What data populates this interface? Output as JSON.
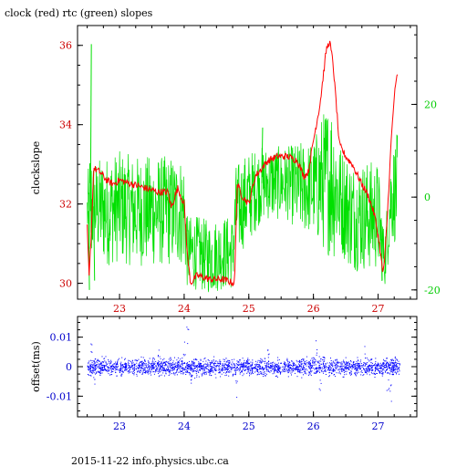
{
  "title": "clock (red) rtc (green) slopes",
  "footer": "2015-11-22 info.physics.ubc.ca",
  "colors": {
    "clock": "#ff0000",
    "rtc": "#00e000",
    "offset": "#0000ff",
    "red_axis": "#cc0000",
    "green_axis": "#00cc00",
    "blue_axis": "#0000cc"
  },
  "chart_data": [
    {
      "type": "line",
      "title": "clock (red) rtc (green) slopes",
      "xlim": [
        22.35,
        27.6
      ],
      "x_ticks": [
        "23",
        "24",
        "25",
        "26",
        "27"
      ],
      "ylabel": "clockslope",
      "ylim": [
        29.6,
        36.5
      ],
      "y_ticks": [
        "30",
        "32",
        "34",
        "36"
      ],
      "y2lim": [
        -22,
        37
      ],
      "y2_ticks": [
        "-20",
        "0",
        "20"
      ],
      "series": [
        {
          "name": "clock",
          "axis": "left",
          "color": "#ff0000",
          "x": [
            22.5,
            22.53,
            22.56,
            22.6,
            22.7,
            22.8,
            22.9,
            23.0,
            23.2,
            23.4,
            23.6,
            23.75,
            23.8,
            23.9,
            24.0,
            24.05,
            24.1,
            24.2,
            24.4,
            24.6,
            24.78,
            24.82,
            24.9,
            25.0,
            25.1,
            25.2,
            25.3,
            25.45,
            25.6,
            25.75,
            25.85,
            25.92,
            26.0,
            26.1,
            26.2,
            26.25,
            26.3,
            26.35,
            26.4,
            26.5,
            26.6,
            26.75,
            26.85,
            26.95,
            27.02,
            27.07,
            27.1,
            27.15,
            27.2,
            27.25,
            27.3
          ],
          "values": [
            31.4,
            30.1,
            31.2,
            32.9,
            32.8,
            32.6,
            32.5,
            32.6,
            32.5,
            32.4,
            32.3,
            32.3,
            31.9,
            32.4,
            32.0,
            30.7,
            30.0,
            30.2,
            30.1,
            30.1,
            30.0,
            32.5,
            32.2,
            32.0,
            32.7,
            32.9,
            33.1,
            33.2,
            33.2,
            33.1,
            32.7,
            32.8,
            33.6,
            34.5,
            35.9,
            36.1,
            35.6,
            34.6,
            33.5,
            33.2,
            33.0,
            32.5,
            32.2,
            31.7,
            31.0,
            30.3,
            30.5,
            31.9,
            33.5,
            34.7,
            35.3
          ]
        },
        {
          "name": "rtc",
          "axis": "right",
          "color": "#00e000",
          "x": [
            22.5,
            22.55,
            22.6,
            22.8,
            23.0,
            23.2,
            23.4,
            23.6,
            23.8,
            24.0,
            24.05,
            24.2,
            24.4,
            24.6,
            24.75,
            24.8,
            25.0,
            25.2,
            25.4,
            25.6,
            25.8,
            26.0,
            26.1,
            26.2,
            26.3,
            26.4,
            26.6,
            26.8,
            27.0,
            27.1,
            27.2,
            27.3
          ],
          "center": [
            -3,
            -3,
            -2,
            -3,
            -2,
            -3,
            -3,
            -3,
            -3,
            -3,
            -12,
            -12,
            -13,
            -12,
            -12,
            -3,
            0,
            3,
            3,
            3,
            2,
            2,
            3,
            4,
            4,
            0,
            -4,
            -4,
            -4,
            -14,
            0,
            2
          ],
          "spread": [
            6,
            16,
            10,
            12,
            12,
            12,
            12,
            12,
            12,
            12,
            8,
            8,
            8,
            8,
            8,
            10,
            10,
            8,
            8,
            8,
            10,
            10,
            14,
            16,
            18,
            12,
            12,
            12,
            12,
            6,
            10,
            12
          ],
          "spikes": [
            [
              22.55,
              33
            ],
            [
              22.52,
              -20
            ],
            [
              22.6,
              -18
            ],
            [
              25.2,
              15
            ],
            [
              26.18,
              17
            ],
            [
              27.05,
              -18
            ]
          ]
        }
      ]
    },
    {
      "type": "scatter",
      "ylabel": "offset(ms)",
      "xlim": [
        22.35,
        27.6
      ],
      "x_ticks": [
        "23",
        "24",
        "25",
        "26",
        "27"
      ],
      "ylim": [
        -0.017,
        0.017
      ],
      "y_ticks": [
        "0.01",
        "0",
        "-0.01"
      ],
      "series": [
        {
          "name": "offset",
          "color": "#0000ff",
          "x_range": [
            22.5,
            27.33
          ],
          "baseline": 0.0,
          "scatter": 0.0025,
          "outliers": [
            [
              22.55,
              0.008
            ],
            [
              22.6,
              -0.006
            ],
            [
              23.6,
              0.006
            ],
            [
              24.0,
              0.009
            ],
            [
              24.05,
              0.014
            ],
            [
              24.1,
              -0.006
            ],
            [
              24.8,
              -0.011
            ],
            [
              25.3,
              0.008
            ],
            [
              26.05,
              0.009
            ],
            [
              26.1,
              -0.008
            ],
            [
              26.15,
              0.006
            ],
            [
              26.8,
              0.007
            ],
            [
              27.15,
              -0.01
            ],
            [
              27.2,
              -0.012
            ],
            [
              27.25,
              0.004
            ]
          ]
        }
      ]
    }
  ]
}
